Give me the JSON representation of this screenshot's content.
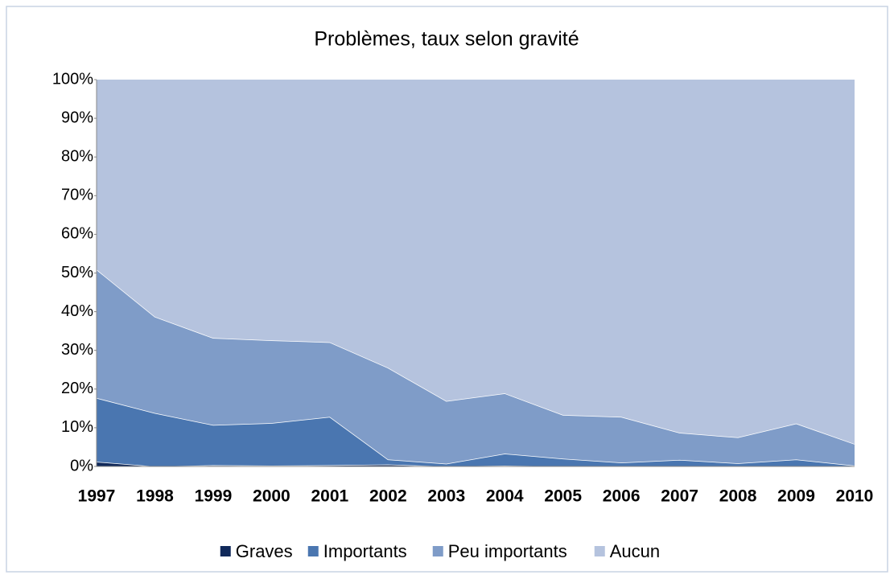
{
  "chart_data": {
    "type": "area",
    "stacked": true,
    "title": "Problèmes, taux selon gravité",
    "categories": [
      "1997",
      "1998",
      "1999",
      "2000",
      "2001",
      "2002",
      "2003",
      "2004",
      "2005",
      "2006",
      "2007",
      "2008",
      "2009",
      "2010"
    ],
    "series": [
      {
        "name": "Graves",
        "color": "#10295a",
        "values": [
          1.2,
          0,
          0.3,
          0.2,
          0.3,
          0.5,
          0,
          0.2,
          0,
          0,
          0,
          0,
          0,
          0
        ]
      },
      {
        "name": "Importants",
        "color": "#4a76b0",
        "values": [
          16.5,
          13.8,
          10.4,
          11.0,
          12.5,
          1.3,
          0.7,
          3.1,
          2.0,
          1.0,
          1.7,
          0.8,
          1.8,
          0.2
        ]
      },
      {
        "name": "Peu importants",
        "color": "#7f9cc8",
        "values": [
          33.2,
          24.9,
          22.5,
          21.4,
          19.3,
          23.7,
          16.2,
          15.6,
          11.3,
          11.8,
          7.0,
          6.7,
          9.3,
          5.6
        ]
      },
      {
        "name": "Aucun",
        "color": "#b5c3de",
        "values": [
          49.1,
          61.3,
          66.8,
          67.4,
          67.9,
          74.5,
          83.1,
          81.1,
          86.7,
          87.2,
          91.3,
          92.5,
          88.9,
          94.2
        ]
      }
    ],
    "ylim": [
      0,
      100
    ],
    "yticks": [
      {
        "value": 0,
        "label": "0%"
      },
      {
        "value": 10,
        "label": "10%"
      },
      {
        "value": 20,
        "label": "20%"
      },
      {
        "value": 30,
        "label": "30%"
      },
      {
        "value": 40,
        "label": "40%"
      },
      {
        "value": 50,
        "label": "50%"
      },
      {
        "value": 60,
        "label": "60%"
      },
      {
        "value": 70,
        "label": "70%"
      },
      {
        "value": 80,
        "label": "80%"
      },
      {
        "value": 90,
        "label": "90%"
      },
      {
        "value": 100,
        "label": "100%"
      }
    ],
    "legend": "bottom"
  }
}
